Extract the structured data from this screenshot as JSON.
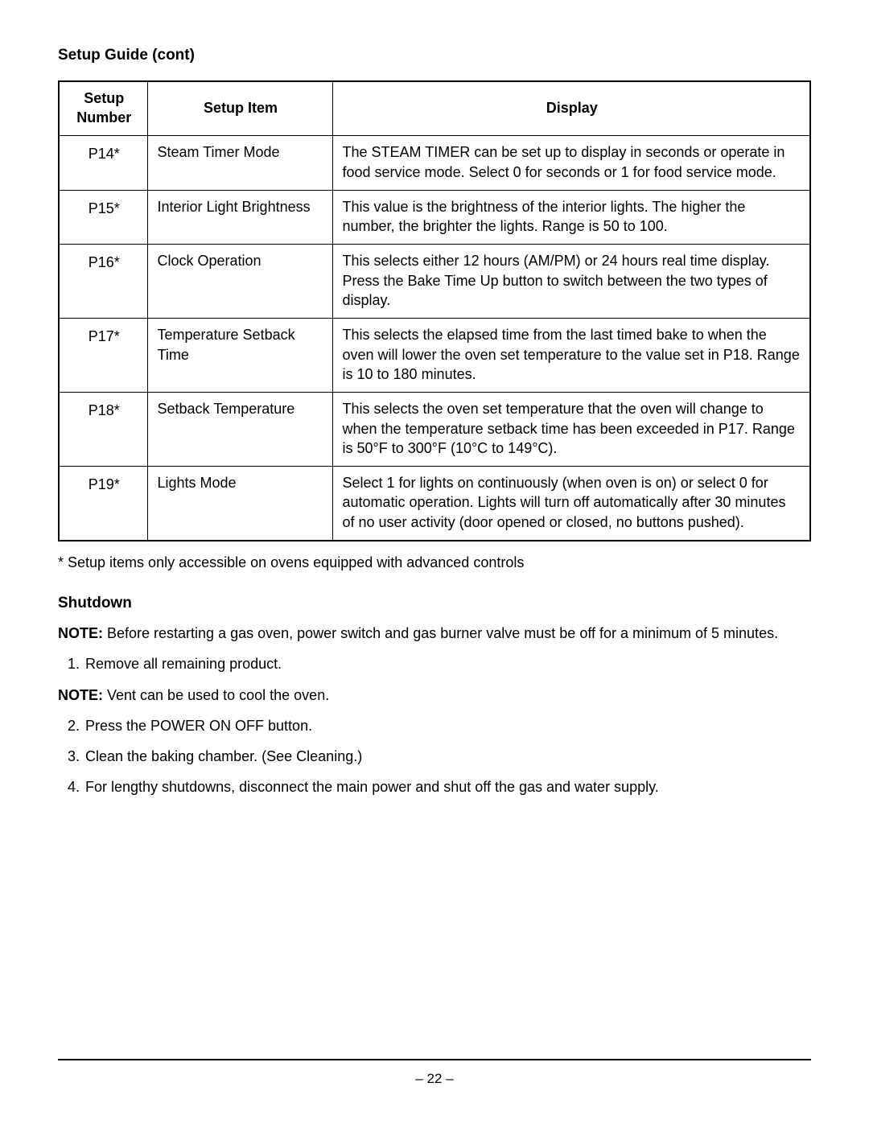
{
  "section_title": "Setup Guide (cont)",
  "table": {
    "headers": {
      "number_line1": "Setup",
      "number_line2": "Number",
      "item": "Setup Item",
      "display": "Display"
    },
    "rows": [
      {
        "number": "P14*",
        "item": "Steam Timer Mode",
        "display": "The STEAM TIMER can be set up to display in seconds or operate in food service mode. Select 0 for seconds or 1 for food service mode."
      },
      {
        "number": "P15*",
        "item": "Interior Light Brightness",
        "display": "This value is the brightness of the interior lights. The higher the number, the brighter the lights. Range is 50 to 100."
      },
      {
        "number": "P16*",
        "item": "Clock Operation",
        "display": "This selects either 12 hours (AM/PM) or 24 hours real time display. Press the Bake Time Up button to switch between the two types of display."
      },
      {
        "number": "P17*",
        "item": "Temperature Setback Time",
        "display": "This selects the elapsed time from the last timed bake to when the oven will lower the oven set temperature to the value set in P18. Range is 10 to 180 minutes."
      },
      {
        "number": "P18*",
        "item": "Setback Temperature",
        "display": "This selects the oven set temperature that the oven will change to when the temperature setback time has been exceeded in P17. Range is 50°F to 300°F (10°C to 149°C)."
      },
      {
        "number": "P19*",
        "item": "Lights Mode",
        "display": "Select 1 for lights on continuously (when oven is on) or select 0 for automatic operation. Lights will turn off automatically after 30 minutes of no user activity (door opened or closed, no buttons pushed)."
      }
    ]
  },
  "footnote": "* Setup items only accessible on ovens equipped with advanced controls",
  "shutdown": {
    "heading": "Shutdown",
    "note1_label": "NOTE:",
    "note1_text": " Before restarting a gas oven, power switch and gas burner valve must be off for a minimum of 5 minutes.",
    "step1_num": "1.",
    "step1_text": "Remove all remaining product.",
    "note2_label": "NOTE:",
    "note2_text": " Vent can be used to cool the oven.",
    "step2_num": "2.",
    "step2_text": "Press the POWER ON OFF button.",
    "step3_num": "3.",
    "step3_text": "Clean the baking chamber. (See Cleaning.)",
    "step4_num": "4.",
    "step4_text": "For lengthy shutdowns, disconnect the main power and shut off the gas and water supply."
  },
  "page_number": "– 22 –"
}
